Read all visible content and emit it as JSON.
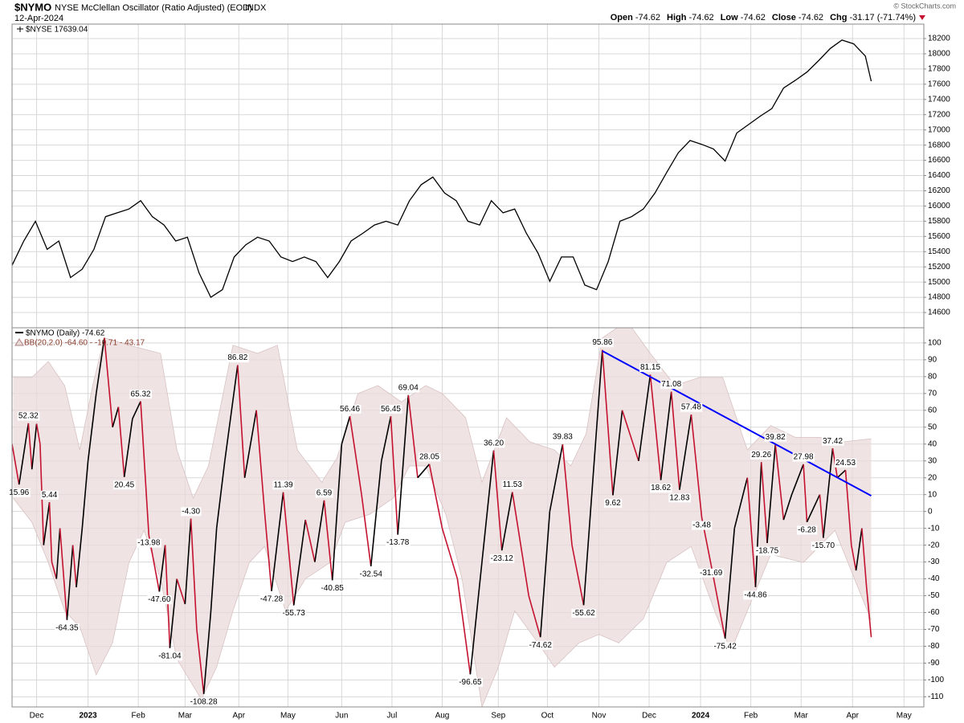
{
  "header": {
    "symbol": "$NYMO",
    "name": "NYSE McClellan Oscillator (Ratio Adjusted) (EOD)",
    "exchange": "INDX",
    "date": "12-Apr-2024",
    "watermark": "© StockCharts.com",
    "quote": [
      {
        "label": "Open",
        "value": -74.62
      },
      {
        "label": "High",
        "value": -74.62
      },
      {
        "label": "Low",
        "value": -74.62
      },
      {
        "label": "Close",
        "value": -74.62
      },
      {
        "label": "Chg",
        "value": "-31.17 (-71.74%)"
      }
    ]
  },
  "chart_data": [
    {
      "type": "line",
      "title": "$NYSE 17639.04",
      "color": "#000000",
      "grid": true,
      "xlim": [
        0,
        78
      ],
      "ylim": [
        14400,
        18390
      ],
      "yticks": [
        14600,
        14800,
        15000,
        15200,
        15400,
        15600,
        15800,
        16000,
        16200,
        16400,
        16600,
        16800,
        17000,
        17200,
        17400,
        17600,
        17800,
        18000,
        18200
      ],
      "x": [
        0,
        1,
        2,
        3,
        4,
        5,
        6,
        7,
        8,
        9,
        10,
        11,
        12,
        13,
        14,
        15,
        16,
        17,
        18,
        19,
        20,
        21,
        22,
        23,
        24,
        25,
        26,
        27,
        28,
        29,
        30,
        31,
        32,
        33,
        34,
        35,
        36,
        37,
        38,
        39,
        40,
        41,
        42,
        43,
        44,
        45,
        46,
        47,
        48,
        49,
        50,
        51,
        52,
        53,
        54,
        55,
        56,
        57,
        58,
        59,
        60,
        61,
        62,
        63,
        64,
        65,
        66,
        67,
        68,
        69,
        70,
        71,
        72,
        73,
        73.5
      ],
      "values": [
        15220,
        15540,
        15800,
        15430,
        15540,
        15060,
        15170,
        15430,
        15860,
        15910,
        15960,
        16070,
        15860,
        15750,
        15540,
        15590,
        15120,
        14800,
        14900,
        15330,
        15490,
        15590,
        15540,
        15330,
        15270,
        15330,
        15270,
        15060,
        15270,
        15540,
        15640,
        15750,
        15800,
        15750,
        16070,
        16280,
        16380,
        16170,
        16070,
        15800,
        15750,
        16070,
        15910,
        15960,
        15640,
        15380,
        15010,
        15330,
        15330,
        14960,
        14900,
        15270,
        15800,
        15860,
        15960,
        16170,
        16440,
        16700,
        16860,
        16810,
        16750,
        16590,
        16960,
        17070,
        17180,
        17280,
        17550,
        17650,
        17760,
        17910,
        18070,
        18180,
        18130,
        17970,
        17639.04
      ]
    },
    {
      "type": "oscillator",
      "title": "$NYMO (Daily) -74.62",
      "subtitle": "BB(20,2.0) -64.60 - -10.71 - 43.17",
      "grid": true,
      "up_color": "#000000",
      "down_color": "#c4122f",
      "xlim": [
        0,
        78
      ],
      "ylim": [
        -116,
        109
      ],
      "yticks": [
        -110,
        -100,
        -90,
        -80,
        -70,
        -60,
        -50,
        -40,
        -30,
        -20,
        -10,
        0,
        10,
        20,
        30,
        40,
        50,
        60,
        70,
        80,
        90,
        100
      ],
      "xticks": [
        {
          "value": 2.1,
          "label": "Dec"
        },
        {
          "value": 6.5,
          "label": "2023"
        },
        {
          "value": 10.8,
          "label": "Feb"
        },
        {
          "value": 14.8,
          "label": "Mar"
        },
        {
          "value": 19.4,
          "label": "Apr"
        },
        {
          "value": 23.6,
          "label": "May"
        },
        {
          "value": 28.2,
          "label": "Jun"
        },
        {
          "value": 32.5,
          "label": "Jul"
        },
        {
          "value": 36.8,
          "label": "Aug"
        },
        {
          "value": 41.6,
          "label": "Sep"
        },
        {
          "value": 45.8,
          "label": "Oct"
        },
        {
          "value": 50.2,
          "label": "Nov"
        },
        {
          "value": 54.5,
          "label": "Dec"
        },
        {
          "value": 58.9,
          "label": "2024"
        },
        {
          "value": 63.2,
          "label": "Feb"
        },
        {
          "value": 67.5,
          "label": "Mar"
        },
        {
          "value": 71.9,
          "label": "Apr"
        },
        {
          "value": 76.3,
          "label": "May"
        }
      ],
      "x": [
        0,
        0.6,
        1.4,
        1.7,
        2.1,
        2.4,
        2.7,
        3.2,
        3.4,
        3.8,
        4.1,
        4.7,
        5.2,
        5.5,
        6.0,
        6.5,
        7.2,
        7.9,
        8.6,
        9.1,
        9.6,
        10.3,
        11.0,
        11.7,
        12.6,
        13.1,
        13.5,
        14.1,
        14.8,
        15.3,
        15.8,
        16.4,
        17.0,
        17.5,
        18.2,
        19.3,
        19.9,
        20.9,
        21.6,
        22.2,
        23.2,
        24.1,
        25.1,
        25.9,
        26.7,
        27.4,
        28.2,
        28.9,
        29.9,
        30.7,
        31.6,
        32.4,
        33.0,
        33.9,
        34.7,
        35.7,
        36.8,
        38.1,
        39.2,
        40.2,
        41.2,
        41.9,
        42.8,
        44.2,
        45.2,
        46.0,
        47.1,
        47.9,
        48.9,
        50.5,
        51.4,
        52.2,
        53.6,
        54.6,
        55.5,
        56.4,
        57.1,
        58.1,
        59.0,
        59.8,
        61.0,
        61.8,
        62.9,
        63.6,
        64.1,
        64.6,
        65.3,
        66.0,
        66.7,
        67.7,
        68.0,
        69.1,
        69.4,
        70.2,
        70.6,
        71.3,
        71.8,
        72.2,
        72.7,
        73.1,
        73.5
      ],
      "values": [
        40,
        15.96,
        52.32,
        25,
        52,
        40,
        -20,
        5.44,
        -30,
        -40,
        -10,
        -64.35,
        -20,
        -45,
        -10,
        30,
        70,
        103,
        50,
        62,
        20.45,
        55,
        65.32,
        -13.98,
        -47.6,
        -20,
        -81.04,
        -40,
        -55,
        -4.3,
        -70,
        -108.28,
        -60,
        -10,
        30,
        86.82,
        20,
        60,
        0,
        -47.28,
        11.39,
        -55.73,
        -5,
        -30,
        6.59,
        -40.85,
        40,
        56.46,
        10,
        -32.54,
        30,
        56.45,
        -13.78,
        69.04,
        20,
        28.05,
        -10,
        -40,
        -96.65,
        -30,
        36.2,
        -23.12,
        11.53,
        -50,
        -74.62,
        0,
        39.83,
        -20,
        -55.62,
        95.86,
        9.62,
        60,
        30,
        81.15,
        18.62,
        71.08,
        12.83,
        57.48,
        -3.48,
        -31.69,
        -75.42,
        -10,
        20,
        -44.86,
        29.26,
        -18.75,
        39.82,
        -5,
        10,
        27.98,
        -6.28,
        10,
        -15.7,
        37.42,
        20,
        24.53,
        -20,
        -35,
        -10,
        -45,
        -74.62
      ],
      "band": {
        "color": "#e9dada",
        "line_color": "#d9c2c2",
        "upper": {
          "x": [
            0.1,
            1.7,
            3.1,
            4.5,
            5.8,
            6.9,
            7.9,
            10.0,
            12.7,
            14.1,
            15.5,
            16.8,
            18.9,
            21.0,
            22.7,
            24.4,
            26.5,
            27.8,
            29.6,
            31.3,
            33.3,
            35.4,
            36.8,
            38.8,
            40.2,
            42.3,
            44.3,
            46.4,
            47.8,
            49.1,
            50.5,
            52.6,
            54.6,
            56.7,
            58.8,
            60.8,
            62.9,
            64.9,
            67.0,
            69.1,
            71.1,
            73.5
          ],
          "values": [
            79.5,
            79.5,
            89,
            74.7,
            36.5,
            74.7,
            103,
            98.6,
            93.8,
            36.5,
            7.9,
            27,
            98.6,
            93.8,
            98.6,
            36.5,
            17.4,
            31.8,
            70,
            74.7,
            65,
            74.7,
            70,
            55.6,
            17.4,
            55.6,
            41.3,
            36.5,
            27,
            46,
            103,
            113,
            93.8,
            74.7,
            79.5,
            79.5,
            36.5,
            51,
            44,
            44,
            41.3,
            43.17
          ]
        },
        "lower": {
          "x": [
            0.1,
            1.7,
            3.1,
            4.5,
            5.8,
            7.2,
            8.6,
            10.0,
            11.3,
            12.7,
            14.1,
            16.2,
            17.5,
            18.9,
            20.3,
            21.6,
            23.4,
            25.1,
            27.2,
            28.5,
            30.6,
            32.6,
            34.0,
            35.4,
            37.1,
            38.5,
            40.2,
            41.6,
            43.0,
            45.0,
            46.4,
            48.5,
            50.2,
            51.9,
            54.0,
            56.0,
            58.1,
            60.1,
            61.5,
            62.9,
            64.9,
            67.7,
            70.4,
            73.5
          ],
          "values": [
            7.9,
            -6.4,
            -30.3,
            -59,
            -68.5,
            -97,
            -78,
            -30.3,
            -11.2,
            -40,
            -87.6,
            -111.5,
            -92.4,
            -59,
            -30.3,
            -20.8,
            -59,
            -40,
            -30.3,
            -6.4,
            -1.7,
            7.9,
            27,
            27,
            -1.7,
            -40,
            -116,
            -92.4,
            -59,
            -78,
            -92.4,
            -78,
            -73,
            -78,
            -63.7,
            -30.3,
            -20.8,
            -59,
            -82.8,
            -59,
            -25.5,
            -30.3,
            -11.2,
            -64.6
          ]
        }
      },
      "trendline": {
        "color": "#0000ff",
        "x": [
          50.5,
          73.5
        ],
        "values": [
          95.2,
          9.3
        ]
      },
      "annotations": [
        {
          "x": 0.6,
          "value": 15.96
        },
        {
          "x": 1.4,
          "value": 52.32
        },
        {
          "x": 3.2,
          "value": 5.44
        },
        {
          "x": 4.7,
          "value": -64.35
        },
        {
          "x": 9.6,
          "value": 20.45
        },
        {
          "x": 11.0,
          "value": 65.32
        },
        {
          "x": 11.7,
          "value": -13.98
        },
        {
          "x": 12.6,
          "value": -47.6,
          "label": "-47.60"
        },
        {
          "x": 13.5,
          "value": -81.04
        },
        {
          "x": 15.3,
          "value": -4.3,
          "label": "-4.30"
        },
        {
          "x": 16.4,
          "value": -108.28
        },
        {
          "x": 19.3,
          "value": 86.82
        },
        {
          "x": 22.2,
          "value": -47.28
        },
        {
          "x": 23.2,
          "value": 11.39
        },
        {
          "x": 24.1,
          "value": -55.73
        },
        {
          "x": 26.7,
          "value": 6.59
        },
        {
          "x": 27.4,
          "value": -40.85
        },
        {
          "x": 28.9,
          "value": 56.46
        },
        {
          "x": 30.7,
          "value": -32.54
        },
        {
          "x": 32.4,
          "value": 56.45
        },
        {
          "x": 33.0,
          "value": -13.78
        },
        {
          "x": 33.9,
          "value": 69.04
        },
        {
          "x": 35.7,
          "value": 28.05
        },
        {
          "x": 39.2,
          "value": -96.65
        },
        {
          "x": 41.2,
          "value": 36.2,
          "label": "36.20"
        },
        {
          "x": 41.9,
          "value": -23.12
        },
        {
          "x": 42.8,
          "value": 11.53
        },
        {
          "x": 45.2,
          "value": -74.62
        },
        {
          "x": 47.1,
          "value": 39.83
        },
        {
          "x": 48.9,
          "value": -55.62
        },
        {
          "x": 50.5,
          "value": 95.86
        },
        {
          "x": 51.4,
          "value": 9.62
        },
        {
          "x": 54.6,
          "value": 81.15
        },
        {
          "x": 55.5,
          "value": 18.62
        },
        {
          "x": 56.4,
          "value": 71.08
        },
        {
          "x": 57.1,
          "value": 12.83
        },
        {
          "x": 58.1,
          "value": 57.48
        },
        {
          "x": 59.0,
          "value": -3.48
        },
        {
          "x": 59.8,
          "value": -31.69
        },
        {
          "x": 61.0,
          "value": -75.42
        },
        {
          "x": 63.6,
          "value": -44.86
        },
        {
          "x": 64.1,
          "value": 29.26
        },
        {
          "x": 64.6,
          "value": -18.75
        },
        {
          "x": 65.3,
          "value": 39.82
        },
        {
          "x": 67.7,
          "value": 27.98
        },
        {
          "x": 68.0,
          "value": -6.28
        },
        {
          "x": 69.4,
          "value": -15.7,
          "label": "-15.70"
        },
        {
          "x": 70.2,
          "value": 37.42
        },
        {
          "x": 71.3,
          "value": 24.53
        }
      ]
    }
  ]
}
